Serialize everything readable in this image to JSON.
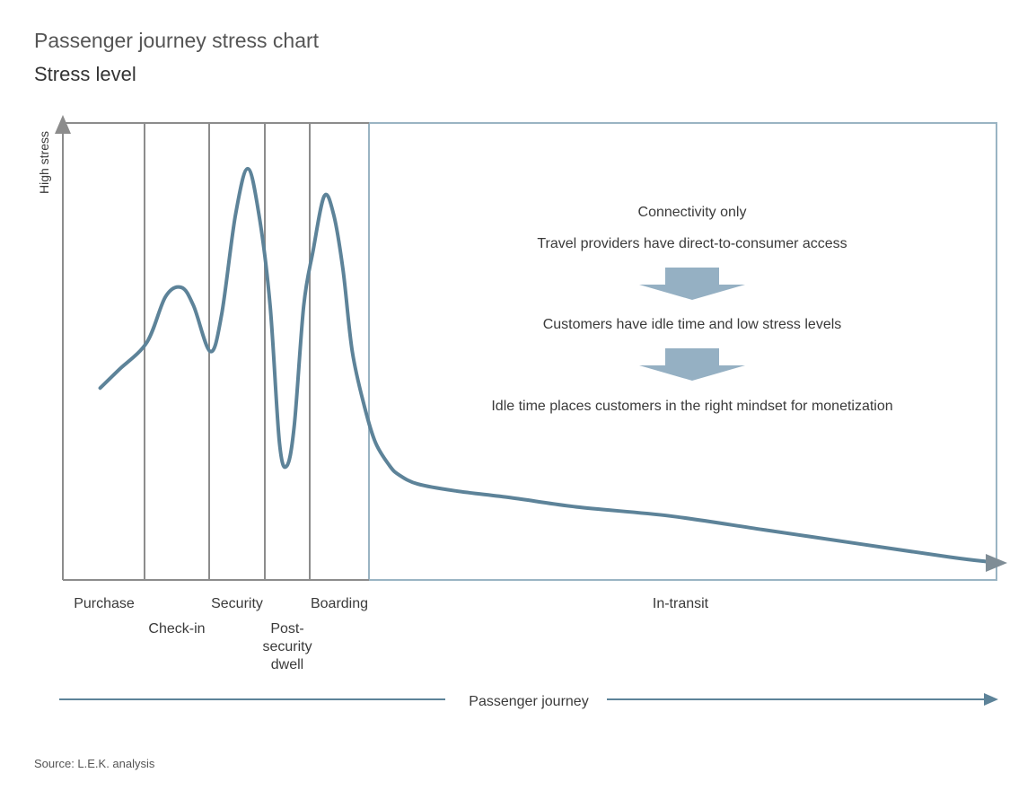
{
  "page": {
    "title": "Passenger journey stress chart",
    "subtitle": "Stress level",
    "source": "Source: L.E.K. analysis"
  },
  "chart_data": {
    "type": "line",
    "title": "Passenger journey stress chart",
    "ylabel": "Stress level",
    "y_axis_marker": "High stress",
    "xlabel": "Passenger journey",
    "stages": [
      {
        "lines": [
          "Purchase"
        ]
      },
      {
        "lines": [
          "Check-in"
        ]
      },
      {
        "lines": [
          "Security"
        ]
      },
      {
        "lines": [
          "Post-",
          "security",
          "dwell"
        ]
      },
      {
        "lines": [
          "Boarding"
        ]
      },
      {
        "lines": [
          "In-transit"
        ]
      }
    ],
    "series": [
      {
        "values": [
          [
            0.04,
            0.42
          ],
          [
            0.06,
            0.46
          ],
          [
            0.09,
            0.52
          ],
          [
            0.11,
            0.62
          ],
          [
            0.127,
            0.64
          ],
          [
            0.14,
            0.6
          ],
          [
            0.158,
            0.5
          ],
          [
            0.17,
            0.58
          ],
          [
            0.185,
            0.8
          ],
          [
            0.198,
            0.9
          ],
          [
            0.21,
            0.8
          ],
          [
            0.222,
            0.6
          ],
          [
            0.232,
            0.3
          ],
          [
            0.24,
            0.25
          ],
          [
            0.248,
            0.34
          ],
          [
            0.258,
            0.6
          ],
          [
            0.268,
            0.72
          ],
          [
            0.28,
            0.84
          ],
          [
            0.29,
            0.8
          ],
          [
            0.3,
            0.68
          ],
          [
            0.31,
            0.5
          ],
          [
            0.323,
            0.38
          ],
          [
            0.335,
            0.3
          ],
          [
            0.35,
            0.25
          ],
          [
            0.36,
            0.23
          ],
          [
            0.38,
            0.21
          ],
          [
            0.42,
            0.195
          ],
          [
            0.48,
            0.18
          ],
          [
            0.55,
            0.16
          ],
          [
            0.65,
            0.14
          ],
          [
            0.75,
            0.11
          ],
          [
            0.85,
            0.08
          ],
          [
            0.95,
            0.05
          ],
          [
            0.99,
            0.04
          ]
        ]
      }
    ],
    "annotations": [
      "Connectivity only",
      "Travel providers have direct-to-consumer access",
      "Customers have idle time and low stress levels",
      "Idle time places customers in the right mindset for monetization"
    ],
    "grid": false
  }
}
